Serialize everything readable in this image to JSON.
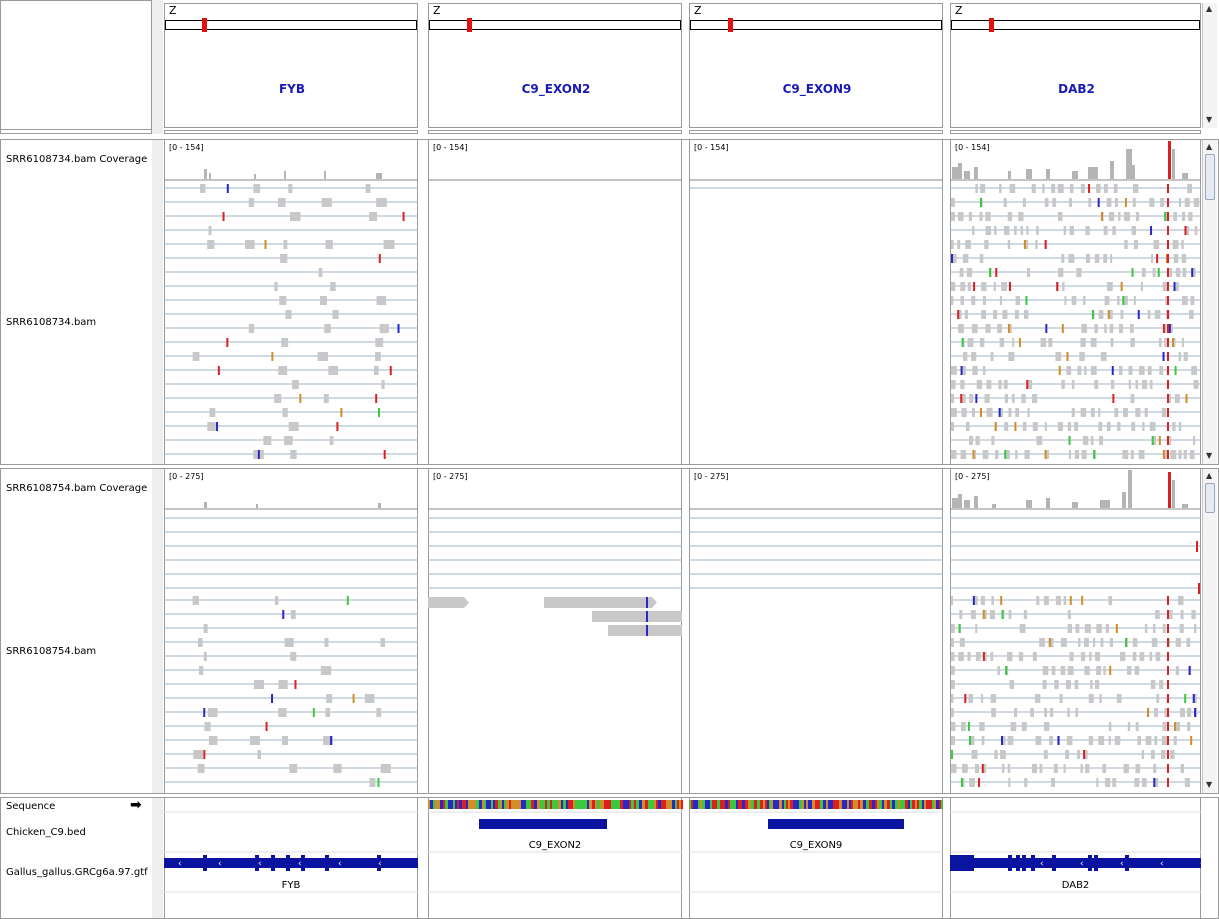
{
  "header": {
    "chromosome": "Z",
    "loci": [
      {
        "name": "FYB"
      },
      {
        "name": "C9_EXON2"
      },
      {
        "name": "C9_EXON9"
      },
      {
        "name": "DAB2"
      }
    ]
  },
  "tracks": {
    "sample1": {
      "coverage_label": "SRR6108734.bam Coverage",
      "alignment_label": "SRR6108734.bam",
      "range": "[0 - 154]"
    },
    "sample2": {
      "coverage_label": "SRR6108754.bam Coverage",
      "alignment_label": "SRR6108754.bam",
      "range": "[0 - 275]"
    },
    "sequence_label": "Sequence",
    "bed_label": "Chicken_C9.bed",
    "gtf_label": "Gallus_gallus.GRCg6a.97.gtf"
  },
  "features": {
    "bed": [
      "C9_EXON2",
      "C9_EXON9"
    ],
    "gtf": [
      "FYB",
      "DAB2"
    ]
  },
  "colors": {
    "gene_name": "#1a1ab8",
    "feature": "#0a14a0",
    "coverage": "#b4b4b4",
    "read": "#c8c8c8",
    "mismatch_A": "#3cc83c",
    "mismatch_C": "#2828c8",
    "mismatch_G": "#d28c28",
    "mismatch_T": "#dc2020",
    "ideogram_mark": "#e41010"
  }
}
